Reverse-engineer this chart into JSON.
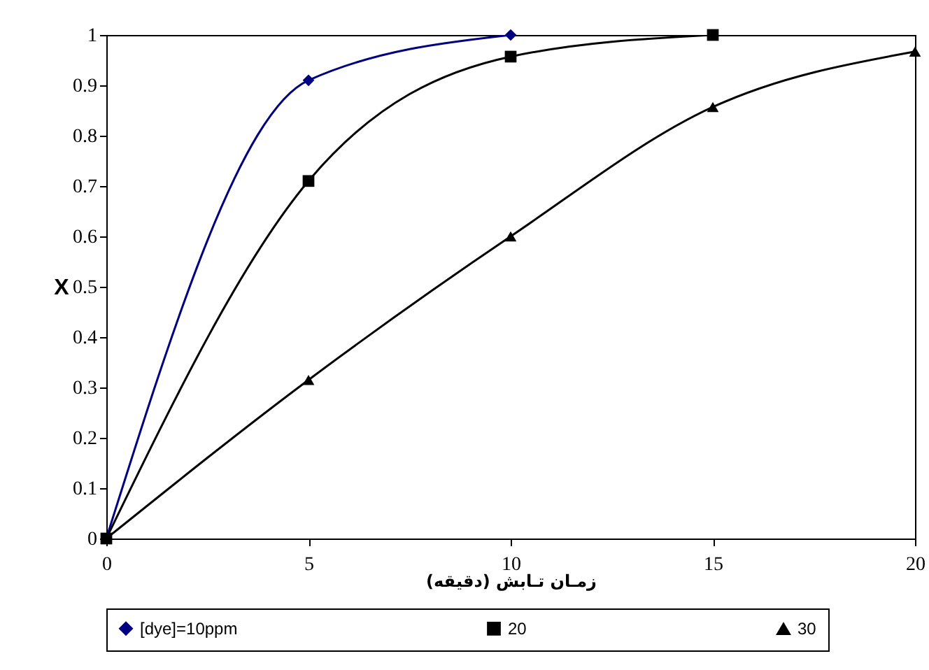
{
  "chart_data": {
    "type": "line",
    "xlabel": "زمـان تـابش (دقیقه)",
    "ylabel": "X",
    "series": [
      {
        "name": "[dye]=10ppm",
        "color": "#000080",
        "marker": "diamond",
        "x": [
          0,
          5,
          10
        ],
        "values": [
          0,
          0.91,
          1
        ]
      },
      {
        "name": "20",
        "color": "#000000",
        "marker": "square",
        "x": [
          0,
          5,
          10,
          15
        ],
        "values": [
          0,
          0.71,
          0.957,
          1
        ]
      },
      {
        "name": "30",
        "color": "#000000",
        "marker": "triangle",
        "x": [
          0,
          5,
          10,
          15,
          20
        ],
        "values": [
          0,
          0.315,
          0.6,
          0.857,
          0.967
        ]
      }
    ],
    "xlim": [
      0,
      20
    ],
    "xticks": [
      0,
      5,
      10,
      15,
      20
    ],
    "ylim": [
      0,
      1
    ],
    "yticks": [
      0,
      0.1,
      0.2,
      0.3,
      0.4,
      0.5,
      0.6,
      0.7,
      0.8,
      0.9,
      1
    ],
    "grid": false,
    "legend": "bottom",
    "line_style": "solid"
  }
}
